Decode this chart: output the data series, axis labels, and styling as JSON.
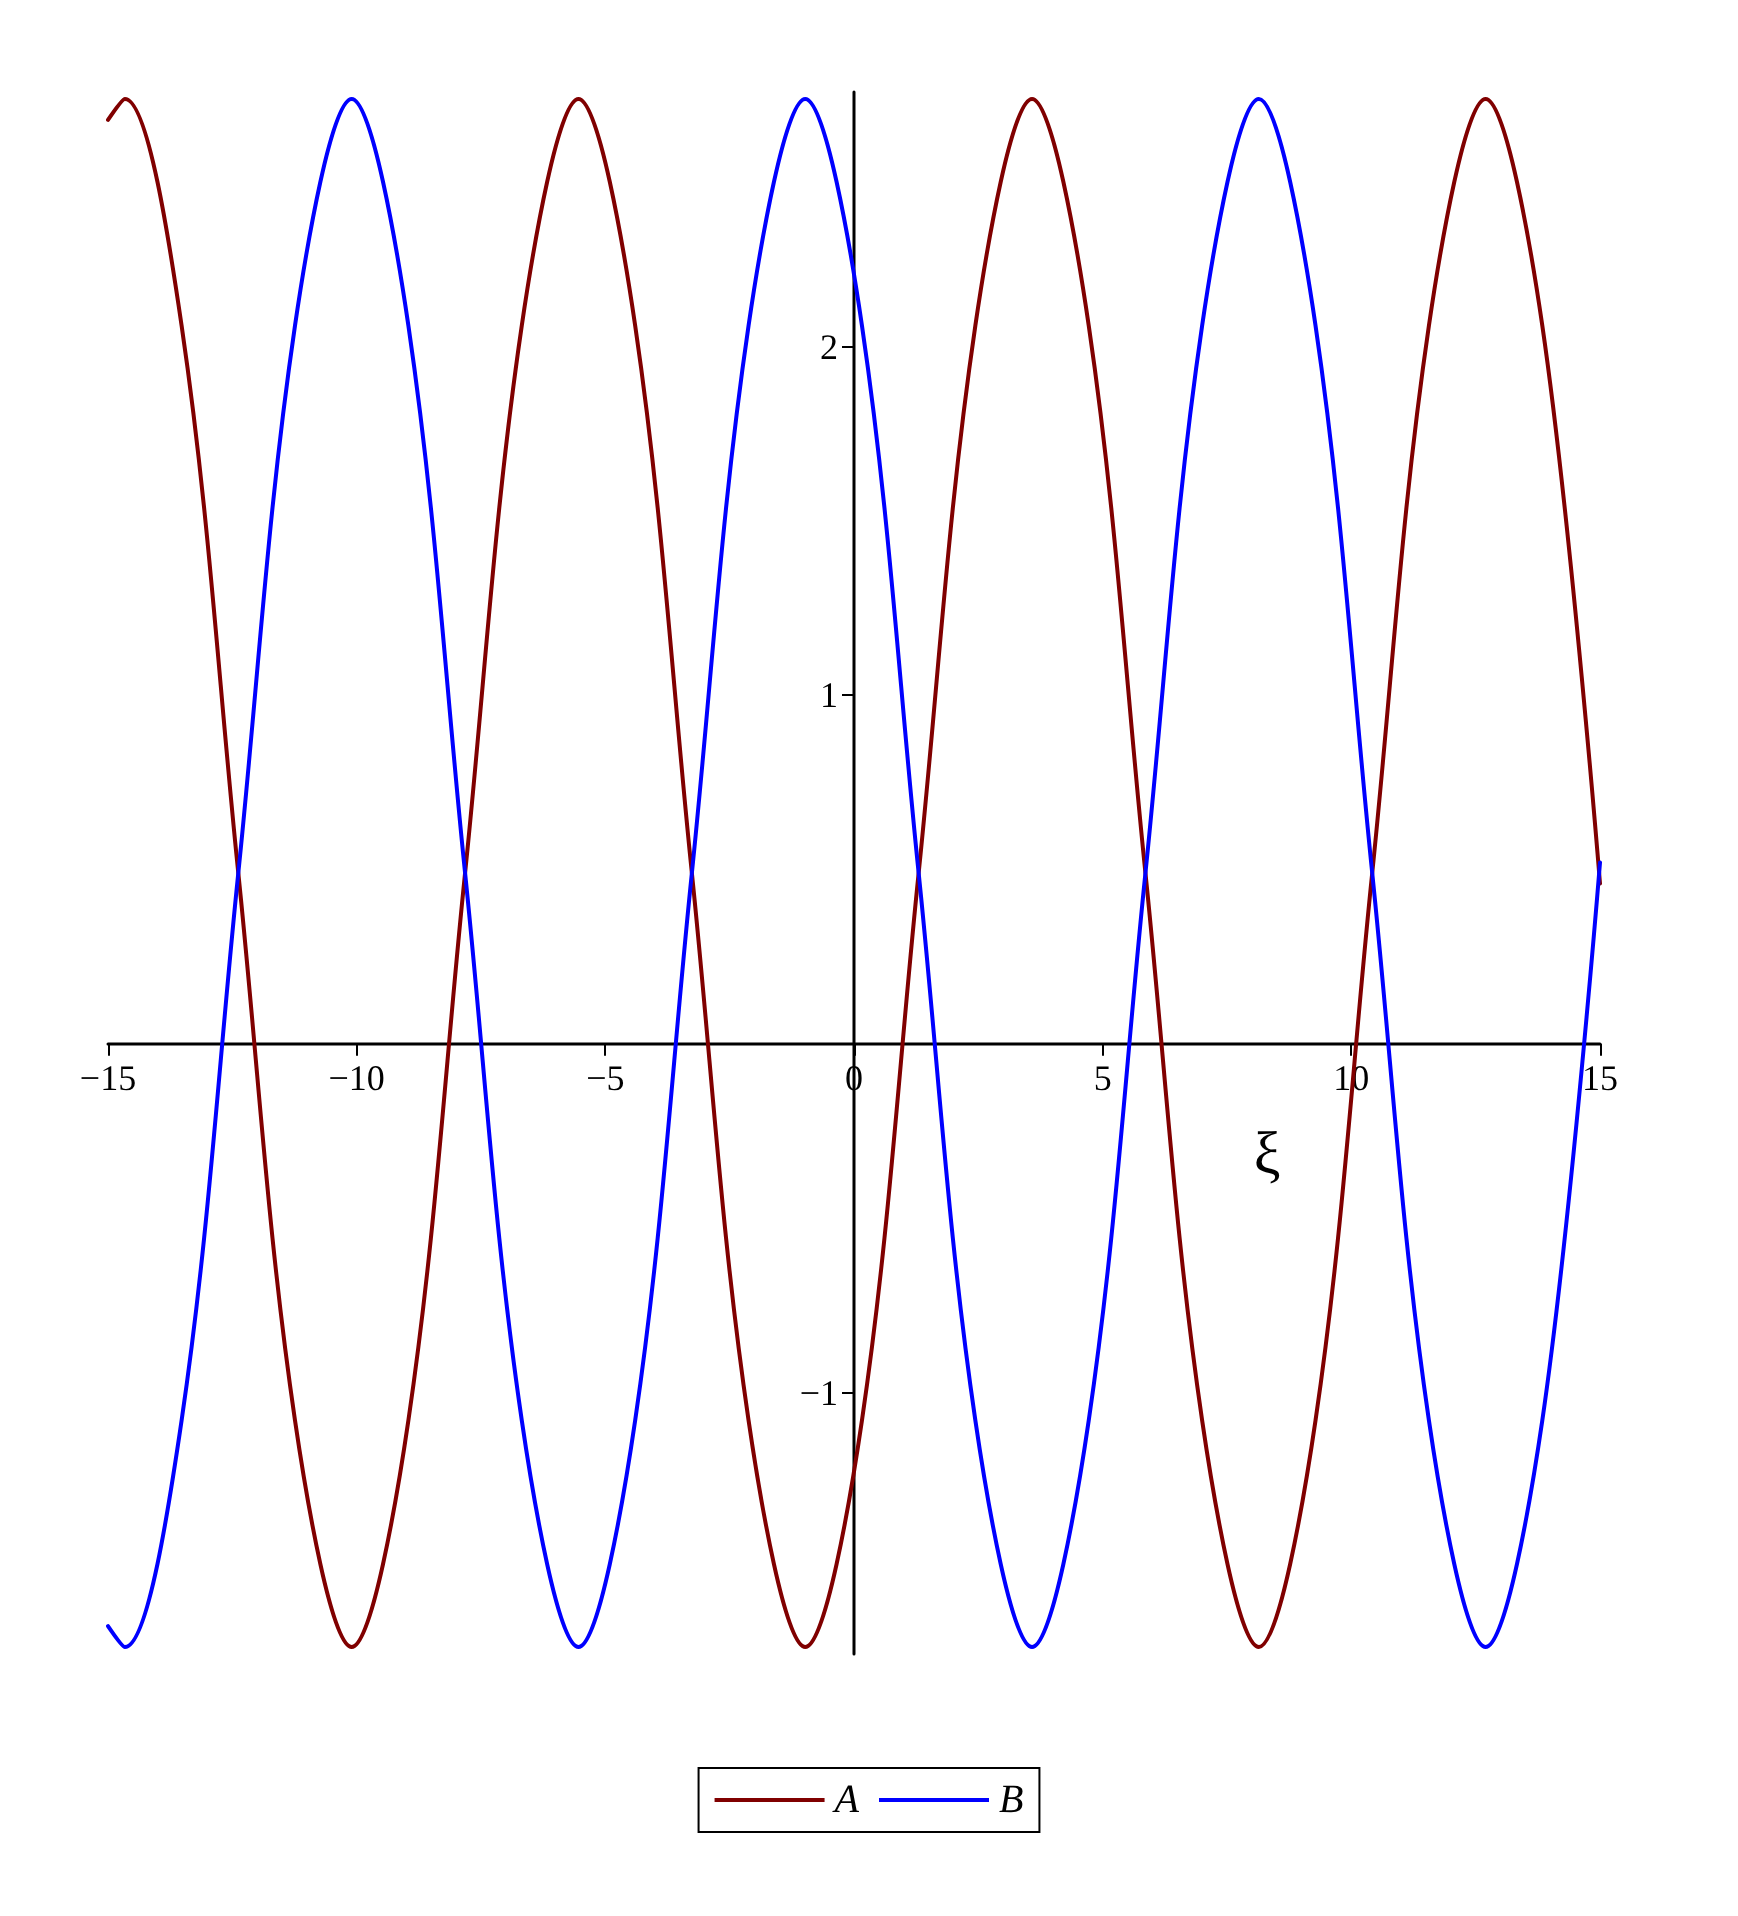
{
  "chart_data": {
    "type": "line",
    "xlabel": "ξ",
    "x": [
      -15,
      -14.66,
      -13.52,
      -12.38,
      -11.24,
      -10.1,
      -8.96,
      -7.82,
      -6.68,
      -5.54,
      -4.4,
      -3.26,
      -2.12,
      -0.98,
      0.16,
      1.3,
      2.44,
      3.58,
      4.72,
      5.86,
      7.0,
      8.14,
      9.28,
      10.42,
      11.56,
      12.7,
      13.84,
      15
    ],
    "series": [
      {
        "name": "A",
        "color": "#800000",
        "values": [
          2.65,
          2.71,
          2.06,
          0.49,
          -1.08,
          -1.73,
          -1.08,
          0.49,
          2.06,
          2.71,
          2.06,
          0.49,
          -1.08,
          -1.73,
          -1.08,
          0.49,
          2.06,
          2.71,
          2.06,
          0.49,
          -1.08,
          -1.73,
          -1.08,
          0.49,
          2.06,
          2.71,
          2.06,
          0.46
        ]
      },
      {
        "name": "B",
        "color": "#0000ff",
        "values": [
          -1.67,
          -1.73,
          -1.08,
          0.49,
          2.06,
          2.71,
          2.06,
          0.49,
          -1.08,
          -1.73,
          -1.08,
          0.49,
          2.06,
          2.71,
          2.06,
          0.49,
          -1.08,
          -1.73,
          -1.08,
          0.49,
          2.06,
          2.71,
          2.06,
          0.49,
          -1.08,
          -1.73,
          -1.08,
          0.52
        ]
      }
    ],
    "xlim": [
      -15,
      15
    ],
    "xticks": [
      -15,
      -10,
      -5,
      0,
      5,
      10,
      15
    ],
    "ylim": [
      -1.75,
      2.73
    ],
    "yticks": [
      -1,
      1,
      2
    ],
    "legend": "bottom",
    "marker": "none",
    "line_style": "solid"
  }
}
